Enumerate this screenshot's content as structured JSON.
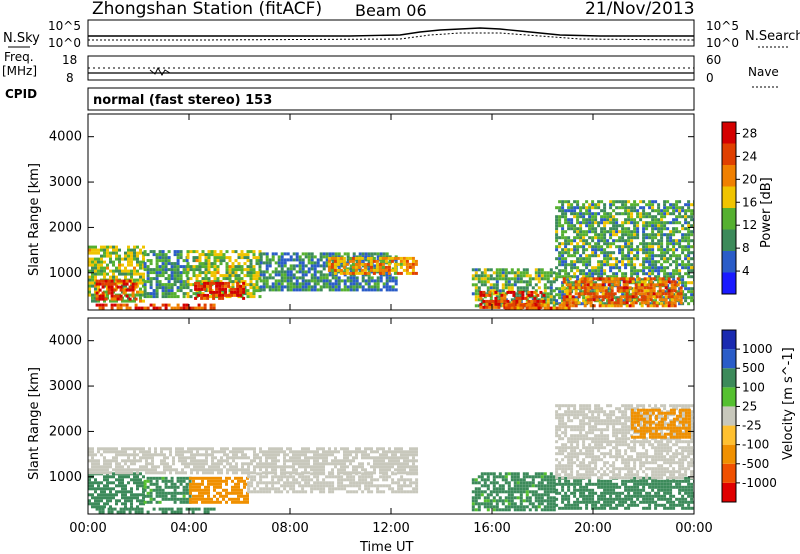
{
  "header": {
    "title": "Zhongshan Station (fitACF)",
    "beam": "Beam 06",
    "date": "21/Nov/2013"
  },
  "nsky_panel": {
    "left_label": "N.Sky",
    "right_label": "N.Search",
    "ticks": [
      "10^5",
      "10^0"
    ]
  },
  "freq_panel": {
    "left_label_1": "Freq.",
    "left_label_2": "[MHz]",
    "right_label": "Nave",
    "left_ticks": [
      "18",
      "8"
    ],
    "right_ticks": [
      "60",
      "0"
    ]
  },
  "cpid": {
    "label": "CPID",
    "mode": "normal (fast stereo) 153"
  },
  "colors": {
    "power": [
      "#1a1aff",
      "#2a5cc8",
      "#3c8a5a",
      "#55b030",
      "#f0c400",
      "#f08000",
      "#e04000",
      "#d40000"
    ],
    "velocity": [
      "#e00000",
      "#f05000",
      "#f09000",
      "#ffc030",
      "#c8c8bc",
      "#55c030",
      "#3c8a5a",
      "#2a5cc8",
      "#1a2ab0"
    ],
    "ground_scatter": "#c8c8bc"
  },
  "chart_data": [
    {
      "type": "heatmap",
      "name": "power",
      "ylabel": "Slant Range [km]",
      "xlabel": "Time UT",
      "x_ticks": [
        "00:00",
        "04:00",
        "08:00",
        "12:00",
        "16:00",
        "20:00",
        "00:00"
      ],
      "x_range_hours": [
        0,
        24
      ],
      "y_ticks": [
        "1000",
        "2000",
        "3000",
        "4000"
      ],
      "y_range_km": [
        180,
        4500
      ],
      "colorbar": {
        "label": "Power [dB]",
        "ticks": [
          "4",
          "8",
          "12",
          "16",
          "20",
          "24",
          "28"
        ],
        "range": [
          0,
          30
        ]
      },
      "regions": [
        {
          "t": [
            0.0,
            2.2
          ],
          "r": [
            350,
            1600
          ],
          "p": 14
        },
        {
          "t": [
            0.3,
            1.9
          ],
          "r": [
            450,
            850
          ],
          "p": 26
        },
        {
          "t": [
            2.2,
            3.9
          ],
          "r": [
            500,
            1500
          ],
          "p": 10
        },
        {
          "t": [
            3.9,
            6.8
          ],
          "r": [
            450,
            1500
          ],
          "p": 14
        },
        {
          "t": [
            4.2,
            6.2
          ],
          "r": [
            450,
            800
          ],
          "p": 27
        },
        {
          "t": [
            6.8,
            12.2
          ],
          "r": [
            650,
            1450
          ],
          "p": 9
        },
        {
          "t": [
            9.5,
            13.0
          ],
          "r": [
            1000,
            1350
          ],
          "p": 19
        },
        {
          "t": [
            15.2,
            18.5
          ],
          "r": [
            300,
            1100
          ],
          "p": 12
        },
        {
          "t": [
            15.5,
            18.0
          ],
          "r": [
            250,
            600
          ],
          "p": 25
        },
        {
          "t": [
            18.5,
            24.0
          ],
          "r": [
            300,
            2600
          ],
          "p": 11
        },
        {
          "t": [
            18.8,
            23.5
          ],
          "r": [
            300,
            900
          ],
          "p": 22
        },
        {
          "t": [
            0.3,
            5.0
          ],
          "r": [
            180,
            320
          ],
          "p": 24
        },
        {
          "t": [
            16.5,
            19.0
          ],
          "r": [
            180,
            320
          ],
          "p": 22
        }
      ]
    },
    {
      "type": "heatmap",
      "name": "velocity",
      "ylabel": "Slant Range [km]",
      "xlabel": "Time UT",
      "x_ticks": [
        "00:00",
        "04:00",
        "08:00",
        "12:00",
        "16:00",
        "20:00",
        "00:00"
      ],
      "x_range_hours": [
        0,
        24
      ],
      "y_ticks": [
        "1000",
        "2000",
        "3000",
        "4000"
      ],
      "y_range_km": [
        180,
        4500
      ],
      "colorbar": {
        "label": "Velocity [m s^-1]",
        "ticks": [
          "1000",
          "500",
          "100",
          "25",
          "-25",
          "-100",
          "-500",
          "-1000"
        ],
        "range": [
          -1000,
          1000
        ]
      },
      "regions": [
        {
          "t": [
            0.0,
            2.2
          ],
          "r": [
            350,
            1100
          ],
          "v": 200
        },
        {
          "t": [
            2.2,
            4.0
          ],
          "r": [
            450,
            1000
          ],
          "v": 150
        },
        {
          "t": [
            0.0,
            13.0
          ],
          "r": [
            1100,
            1650
          ],
          "v": 0
        },
        {
          "t": [
            4.0,
            6.3
          ],
          "r": [
            450,
            1000
          ],
          "v": -300
        },
        {
          "t": [
            6.3,
            13.0
          ],
          "r": [
            650,
            1100
          ],
          "v": 0
        },
        {
          "t": [
            15.2,
            18.5
          ],
          "r": [
            300,
            1100
          ],
          "v": 150
        },
        {
          "t": [
            18.5,
            24.0
          ],
          "r": [
            300,
            1000
          ],
          "v": 200
        },
        {
          "t": [
            18.5,
            24.0
          ],
          "r": [
            1000,
            2600
          ],
          "v": 0
        },
        {
          "t": [
            0.3,
            5.0
          ],
          "r": [
            180,
            320
          ],
          "v": 200
        },
        {
          "t": [
            21.5,
            23.8
          ],
          "r": [
            1900,
            2500
          ],
          "v": -200
        }
      ]
    }
  ]
}
